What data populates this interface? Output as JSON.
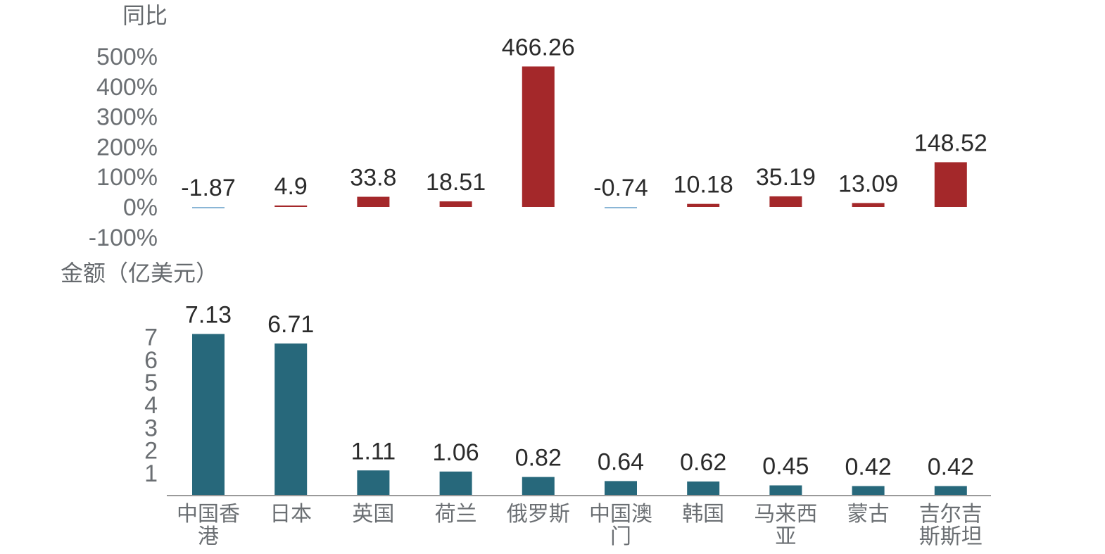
{
  "chart_data": [
    {
      "type": "bar",
      "ylabel": "同比",
      "yticks": [
        "500%",
        "400%",
        "300%",
        "200%",
        "100%",
        "0%",
        "-100%"
      ],
      "ylim": [
        -100,
        500
      ],
      "categories": [
        "中国香港",
        "日本",
        "英国",
        "荷兰",
        "俄罗斯",
        "中国澳门",
        "韩国",
        "马来西亚",
        "蒙古",
        "吉尔吉斯斯坦"
      ],
      "values": [
        -1.87,
        4.9,
        33.8,
        18.51,
        466.26,
        -0.74,
        10.18,
        35.19,
        13.09,
        148.52
      ],
      "value_labels": [
        "-1.87",
        "4.9",
        "33.8",
        "18.51",
        "466.26",
        "-0.74",
        "10.18",
        "35.19",
        "13.09",
        "148.52"
      ],
      "colors": {
        "positive": "#a4282a",
        "negative": "#8ab6d6"
      }
    },
    {
      "type": "bar",
      "ylabel": "金额（亿美元）",
      "yticks": [
        "7",
        "6",
        "5",
        "4",
        "3",
        "2",
        "1"
      ],
      "ylim": [
        0,
        7
      ],
      "categories": [
        "中国香港",
        "日本",
        "英国",
        "荷兰",
        "俄罗斯",
        "中国澳门",
        "韩国",
        "马来西亚",
        "蒙古",
        "吉尔吉斯斯坦"
      ],
      "category_lines": [
        [
          "中国香",
          "港"
        ],
        [
          "日本"
        ],
        [
          "英国"
        ],
        [
          "荷兰"
        ],
        [
          "俄罗斯"
        ],
        [
          "中国澳",
          "门"
        ],
        [
          "韩国"
        ],
        [
          "马来西",
          "亚"
        ],
        [
          "蒙古"
        ],
        [
          "吉尔吉",
          "斯斯坦"
        ]
      ],
      "values": [
        7.13,
        6.71,
        1.11,
        1.06,
        0.82,
        0.64,
        0.62,
        0.45,
        0.42,
        0.42
      ],
      "value_labels": [
        "7.13",
        "6.71",
        "1.11",
        "1.06",
        "0.82",
        "0.64",
        "0.62",
        "0.45",
        "0.42",
        "0.42"
      ],
      "colors": {
        "bar": "#27687b",
        "axis": "#9a9a9a"
      }
    }
  ]
}
